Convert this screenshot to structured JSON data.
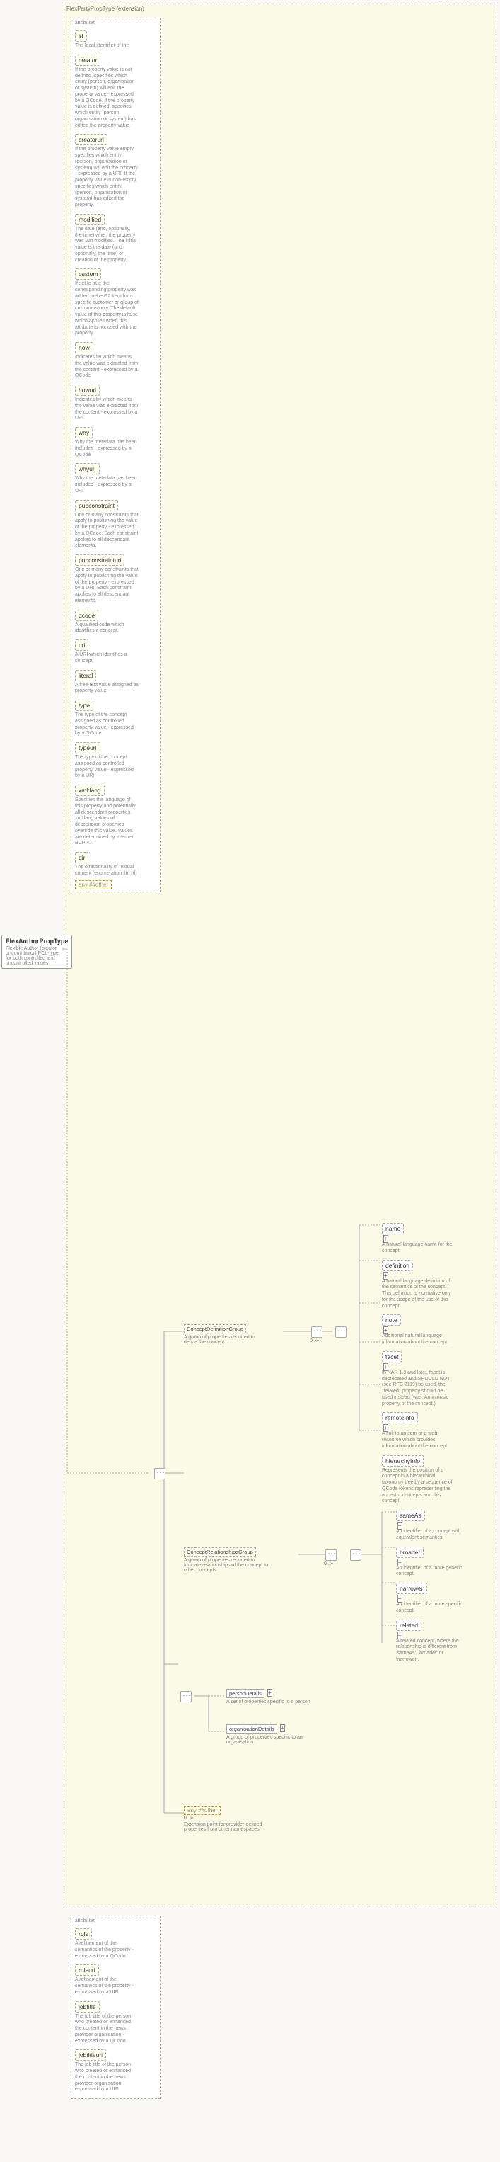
{
  "ext_label": "FlexPartyPropType (extension)",
  "root": {
    "title": "FlexAuthorPropType",
    "desc": "Flexible Author (creator or contributor) PCL-type for both controlled and uncontrolled values"
  },
  "attr_hdr": "attributes",
  "attrs": [
    {
      "n": "id",
      "d": "The local identifier of the"
    },
    {
      "n": "creator",
      "d": "If the property value is not defined, specifies which entity (person, organisation or system) will edit the property value - expressed by a QCode. If the property value is defined, specifies which entity (person, organisation or system) has edited the property value."
    },
    {
      "n": "creatoruri",
      "d": "If the property value empty, specifies which entity (person, organisation or system) will edit the property - expressed by a URI. If the property value is non-empty, specifies which entity (person, organisation or system) has edited the property."
    },
    {
      "n": "modified",
      "d": "The date (and, optionally, the time) when the property was last modified. The initial value is the date (and, optionally, the time) of creation of the property."
    },
    {
      "n": "custom",
      "d": "If set to true the corresponding property was added to the G2 Item for a specific customer or group of customers only. The default value of this property is false which applies when this attribute is not used with the property."
    },
    {
      "n": "how",
      "d": "Indicates by which means the value was extracted from the content - expressed by a QCode"
    },
    {
      "n": "howuri",
      "d": "Indicates by which means the value was extracted from the content - expressed by a URI"
    },
    {
      "n": "why",
      "d": "Why the metadata has been included - expressed by a QCode"
    },
    {
      "n": "whyuri",
      "d": "Why the metadata has been included - expressed by a URI"
    },
    {
      "n": "pubconstraint",
      "d": "One or many constraints that apply to publishing the value of the property - expressed by a QCode. Each constraint applies to all descendant elements."
    },
    {
      "n": "pubconstrainturi",
      "d": "One or many constraints that apply to publishing the value of the property - expressed by a URI. Each constraint applies to all descendant elements."
    },
    {
      "n": "qcode",
      "d": "A qualified code which identifies a concept."
    },
    {
      "n": "uri",
      "d": "A URI which identifies a concept"
    },
    {
      "n": "literal",
      "d": "A free-text value assigned as property value."
    },
    {
      "n": "type",
      "d": "The type of the concept assigned as controlled property value - expressed by a QCode"
    },
    {
      "n": "typeuri",
      "d": "The type of the concept assigned as controlled property value - expressed by a URI"
    },
    {
      "n": "xml:lang",
      "d": "Specifies the language of this property and potentially all descendant properties. xml:lang values of descendant properties override this value. Values are determined by Internet BCP 47."
    },
    {
      "n": "dir",
      "d": "The directionality of textual content (enumeration: ltr, rtl)"
    }
  ],
  "any": "any ##other",
  "groups": {
    "def": {
      "t": "ConceptDefinitionGroup",
      "d": "A group of properties required to define the concept",
      "card": "0..∞"
    },
    "rel": {
      "t": "ConceptRelationshipsGroup",
      "d": "A group of properties required to indicate relationships of the concept to other concepts",
      "card": "0..∞"
    },
    "person": {
      "t": "personDetails",
      "d": "A set of properties specific to a person"
    },
    "org": {
      "t": "organisationDetails",
      "d": "A group of properties specific to an organisation"
    },
    "other": {
      "t": "any ##other",
      "d": "Extension point for provider-defined properties from other namespaces",
      "card": "0..∞"
    }
  },
  "def_children": [
    {
      "n": "name",
      "d": "A natural language name for the concept."
    },
    {
      "n": "definition",
      "d": "A natural language definition of the semantics of the concept. This definition is normative only for the scope of the use of this concept."
    },
    {
      "n": "note",
      "d": "Additional natural language information about the concept."
    },
    {
      "n": "facet",
      "d": "In NAR 1.8 and later, facet is deprecated and SHOULD NOT (see RFC 2119) be used, the \"related\" property should be used instead.(was: An intrinsic property of the concept.)"
    },
    {
      "n": "remoteInfo",
      "d": "A link to an item or a web resource which provides information about the concept"
    },
    {
      "n": "hierarchyInfo",
      "d": "Represents the position of a concept in a hierarchical taxonomy tree by a sequence of QCode tokens representing the ancestor concepts and this concept"
    }
  ],
  "rel_children": [
    {
      "n": "sameAs",
      "d": "An identifier of a concept with equivalent semantics"
    },
    {
      "n": "broader",
      "d": "An identifier of a more generic concept."
    },
    {
      "n": "narrower",
      "d": "An identifier of a more specific concept."
    },
    {
      "n": "related",
      "d": "A related concept, where the relationship is different from 'sameAs', 'broader' or 'narrower'."
    }
  ],
  "bottom_attrs": [
    {
      "n": "role",
      "d": "A refinement of the semantics of the property - expressed by a QCode"
    },
    {
      "n": "roleuri",
      "d": "A refinement of the semantics of the property - expressed by a URI"
    },
    {
      "n": "jobtitle",
      "d": "The job title of the person who created or enhanced the content in the news provider organisation - expressed by a QCode"
    },
    {
      "n": "jobtitleuri",
      "d": "The job title of the person who created or enhanced the content in the news provider organisation - expressed by a URI"
    }
  ]
}
